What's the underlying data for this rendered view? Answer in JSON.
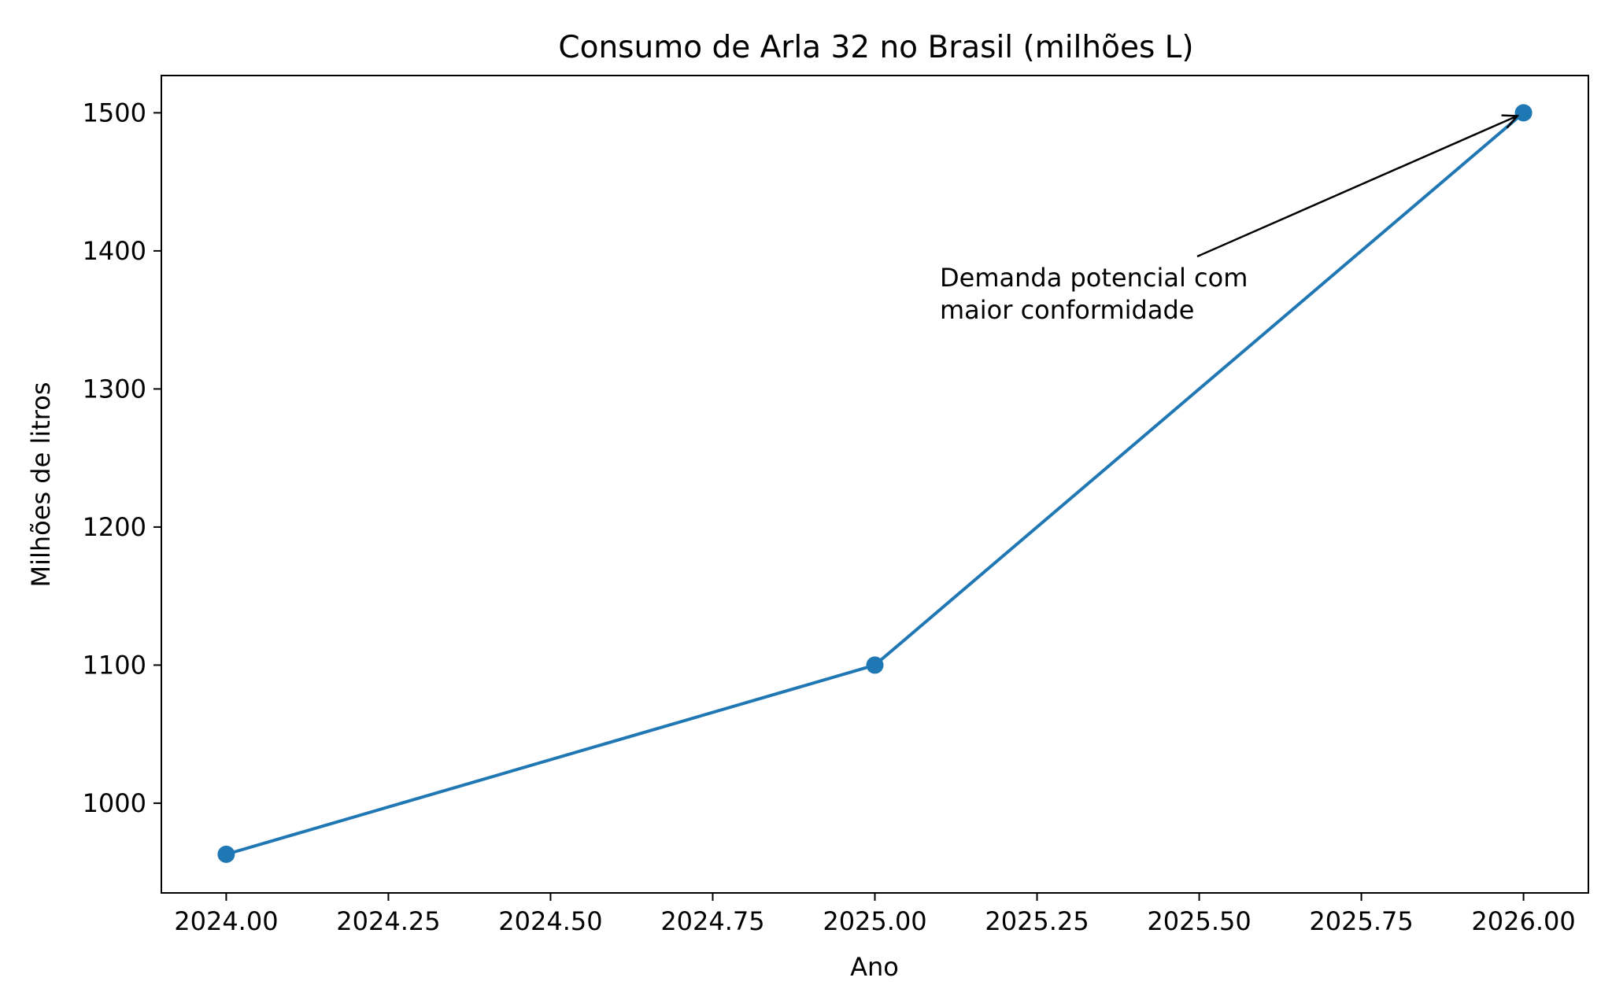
{
  "chart_data": {
    "type": "line",
    "title": "Consumo de Arla 32 no Brasil (milhões L)",
    "xlabel": "Ano",
    "ylabel": "Milhões de litros",
    "xlim": [
      2023.9,
      2026.1
    ],
    "ylim": [
      935,
      1527
    ],
    "x_ticks": [
      "2024.00",
      "2024.25",
      "2024.50",
      "2024.75",
      "2025.00",
      "2025.25",
      "2025.50",
      "2025.75",
      "2026.00"
    ],
    "y_ticks": [
      "1000",
      "1100",
      "1200",
      "1300",
      "1400",
      "1500"
    ],
    "grid": false,
    "series": [
      {
        "x": [
          2024.0,
          2025.0,
          2026.0
        ],
        "y": [
          963,
          1100,
          1500
        ],
        "color": "#1f77b4",
        "marker": "circle"
      }
    ],
    "annotations": [
      {
        "lines": [
          "Demanda potencial com",
          "maior conformidade"
        ],
        "target": [
          2026.0,
          1500
        ]
      }
    ]
  }
}
